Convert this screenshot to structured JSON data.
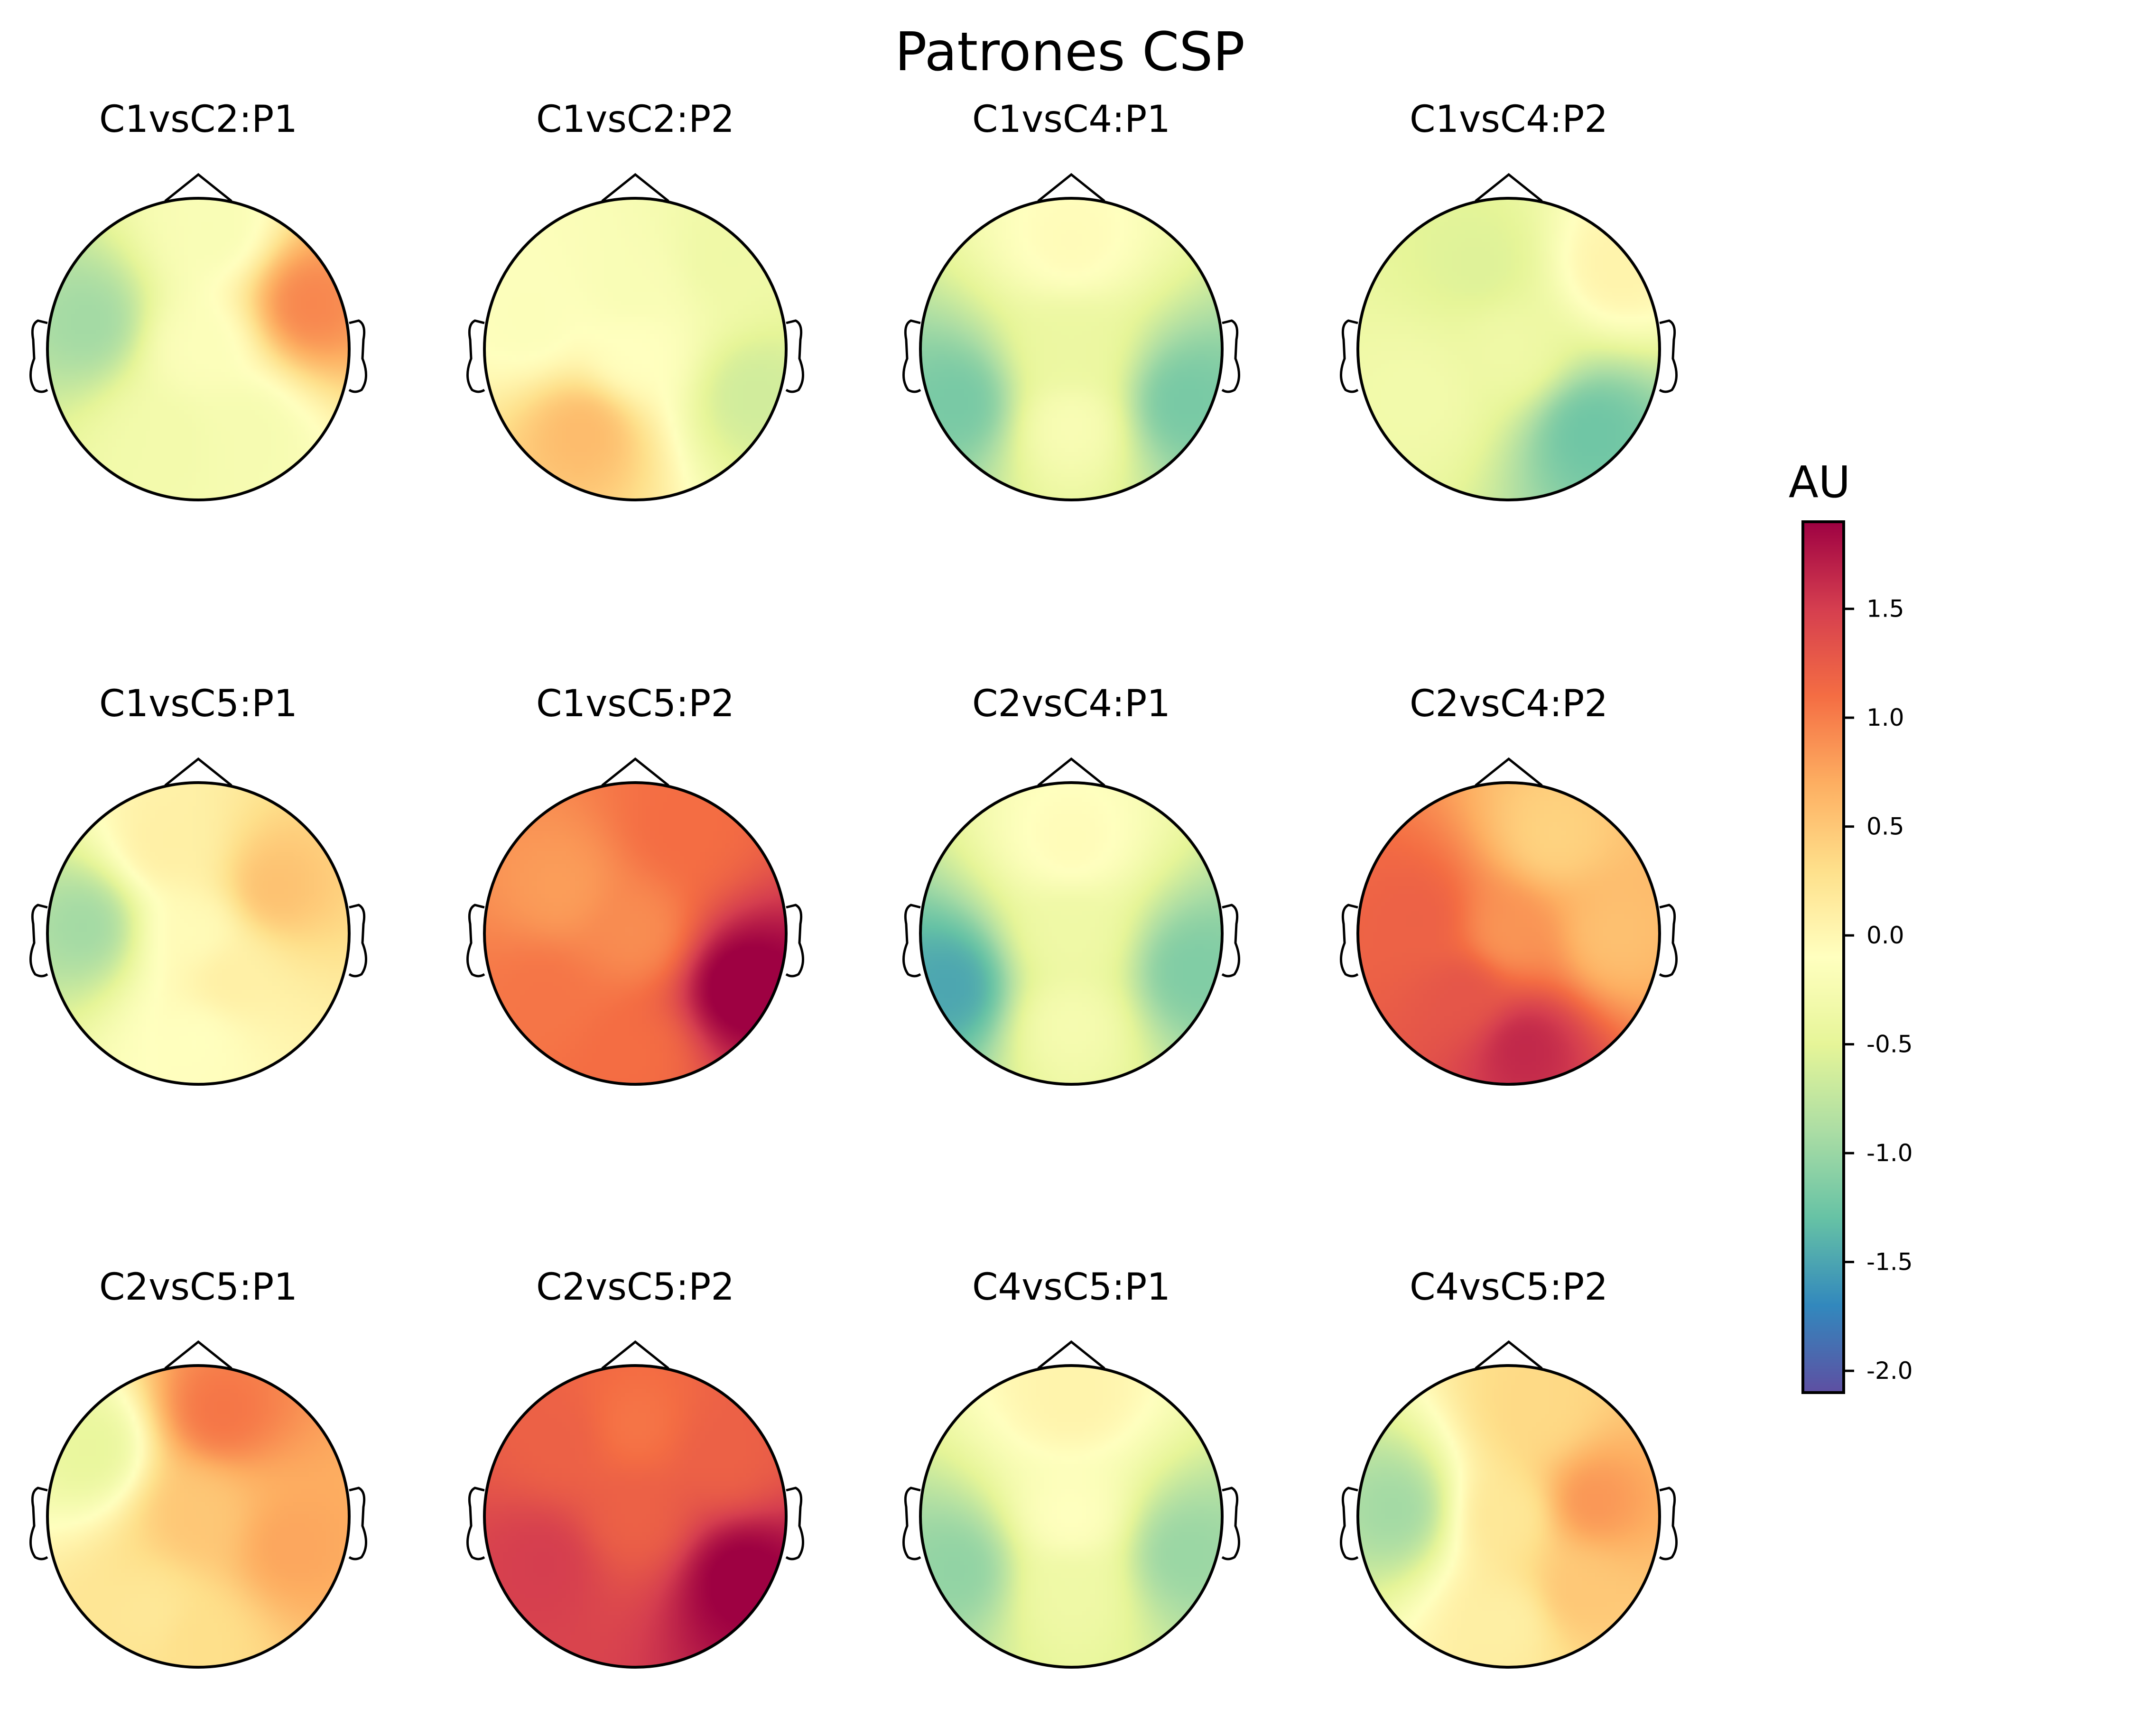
{
  "chart_data": {
    "type": "heatmap",
    "title": "Patrones CSP",
    "colorbar": {
      "label": "AU",
      "vmin": -2.1,
      "vmax": 1.9,
      "colormap": "Spectral_r",
      "ticks": [
        1.5,
        1.0,
        0.5,
        0.0,
        -0.5,
        -1.0,
        -1.5,
        -2.0
      ],
      "tick_labels": [
        "1.5",
        "1.0",
        "0.5",
        "0.0",
        "-0.5",
        "-1.0",
        "-1.5",
        "-2.0"
      ]
    },
    "grid": {
      "rows": 3,
      "cols": 4
    },
    "panels": [
      {
        "title": "C1vsC2:P1",
        "sources": [
          [
            0.0,
            0.0,
            -0.15
          ],
          [
            -0.72,
            0.18,
            -0.95
          ],
          [
            0.74,
            0.3,
            0.95
          ],
          [
            -0.2,
            -0.6,
            -0.3
          ],
          [
            0.3,
            -0.55,
            -0.25
          ],
          [
            0.1,
            0.8,
            -0.2
          ]
        ]
      },
      {
        "title": "C1vsC2:P2",
        "sources": [
          [
            0.0,
            0.0,
            -0.1
          ],
          [
            -0.35,
            -0.55,
            0.6
          ],
          [
            0.0,
            0.4,
            -0.2
          ],
          [
            0.78,
            -0.3,
            -0.65
          ],
          [
            0.6,
            0.6,
            -0.35
          ],
          [
            -0.7,
            0.2,
            -0.15
          ]
        ]
      },
      {
        "title": "C1vsC4:P1",
        "sources": [
          [
            0.0,
            0.7,
            -0.05
          ],
          [
            -0.75,
            -0.35,
            -1.2
          ],
          [
            0.75,
            -0.35,
            -1.2
          ],
          [
            0.0,
            -0.5,
            -0.2
          ],
          [
            0.0,
            0.0,
            -0.4
          ]
        ]
      },
      {
        "title": "C1vsC4:P2",
        "sources": [
          [
            0.0,
            0.0,
            -0.35
          ],
          [
            0.72,
            0.55,
            0.05
          ],
          [
            0.55,
            -0.55,
            -1.25
          ],
          [
            -0.2,
            0.55,
            -0.55
          ],
          [
            -0.6,
            -0.3,
            -0.3
          ]
        ]
      },
      {
        "title": "C1vsC5:P1",
        "sources": [
          [
            0.0,
            0.0,
            -0.05
          ],
          [
            -0.75,
            0.05,
            -0.95
          ],
          [
            0.5,
            0.3,
            0.55
          ],
          [
            0.0,
            -0.7,
            -0.1
          ],
          [
            0.2,
            -0.3,
            0.1
          ],
          [
            -0.2,
            0.6,
            0.1
          ]
        ]
      },
      {
        "title": "C1vsC5:P2",
        "sources": [
          [
            0.0,
            0.0,
            0.9
          ],
          [
            0.7,
            -0.35,
            2.0
          ],
          [
            0.3,
            0.7,
            1.1
          ],
          [
            -0.5,
            0.3,
            0.8
          ],
          [
            -0.6,
            -0.4,
            1.05
          ],
          [
            0.0,
            -0.8,
            1.1
          ]
        ]
      },
      {
        "title": "C2vsC4:P1",
        "sources": [
          [
            0.0,
            0.6,
            -0.05
          ],
          [
            -0.8,
            -0.35,
            -1.5
          ],
          [
            0.8,
            -0.25,
            -1.15
          ],
          [
            0.0,
            -0.6,
            -0.25
          ],
          [
            0.0,
            0.0,
            -0.35
          ]
        ]
      },
      {
        "title": "C2vsC4:P2",
        "sources": [
          [
            0.0,
            0.0,
            0.85
          ],
          [
            0.3,
            0.65,
            0.4
          ],
          [
            -0.6,
            0.1,
            1.2
          ],
          [
            0.1,
            -0.75,
            1.65
          ],
          [
            0.7,
            0.0,
            0.55
          ],
          [
            -0.3,
            -0.4,
            1.3
          ]
        ]
      },
      {
        "title": "C2vsC5:P1",
        "sources": [
          [
            0.0,
            0.0,
            0.5
          ],
          [
            -0.72,
            0.45,
            -0.45
          ],
          [
            0.15,
            0.7,
            1.05
          ],
          [
            0.6,
            -0.2,
            0.75
          ],
          [
            -0.3,
            -0.65,
            0.2
          ],
          [
            0.0,
            -0.8,
            0.3
          ]
        ]
      },
      {
        "title": "C2vsC5:P2",
        "sources": [
          [
            0.0,
            0.0,
            1.2
          ],
          [
            0.7,
            -0.4,
            1.95
          ],
          [
            -0.6,
            -0.3,
            1.5
          ],
          [
            0.0,
            0.6,
            1.05
          ],
          [
            0.6,
            0.4,
            1.2
          ],
          [
            -0.5,
            0.5,
            1.2
          ]
        ]
      },
      {
        "title": "C4vsC5:P1",
        "sources": [
          [
            0.0,
            0.8,
            0.05
          ],
          [
            -0.75,
            -0.35,
            -1.05
          ],
          [
            0.75,
            -0.25,
            -1.0
          ],
          [
            0.0,
            -0.5,
            -0.35
          ],
          [
            0.0,
            0.0,
            -0.1
          ]
        ]
      },
      {
        "title": "C4vsC5:P2",
        "sources": [
          [
            0.0,
            0.0,
            0.2
          ],
          [
            -0.75,
            0.05,
            -0.95
          ],
          [
            0.55,
            0.1,
            0.85
          ],
          [
            0.0,
            -0.7,
            0.1
          ],
          [
            0.2,
            0.7,
            0.35
          ],
          [
            0.45,
            -0.5,
            0.5
          ]
        ]
      }
    ]
  }
}
